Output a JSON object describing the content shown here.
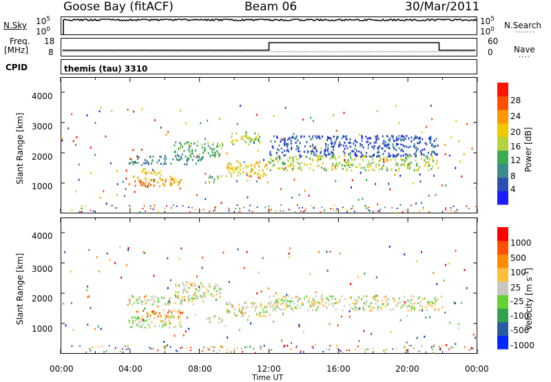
{
  "header": {
    "station": "Goose Bay (fitACF)",
    "beam": "Beam 06",
    "date": "30/Mar/2011"
  },
  "strip": {
    "nsky_label": "N.Sky",
    "nsearch_label": "N.Search",
    "freq_label": "Freq.",
    "freq_unit": "[MHz]",
    "nave_label": "Nave",
    "cpid_label": "CPID",
    "cpid_value": "themis (tau) 3310",
    "noise_ticks": [
      "10^5",
      "10^0"
    ],
    "freq_ticks": [
      "18",
      "8"
    ],
    "nave_ticks": [
      "60",
      "0"
    ]
  },
  "chart_data": [
    {
      "type": "heatmap",
      "title": "",
      "xlabel": "Time UT",
      "ylabel": "Slant Range [km]",
      "x_ticks": [
        "00:00",
        "04:00",
        "08:00",
        "12:00",
        "16:00",
        "20:00",
        "00:00"
      ],
      "y_ticks": [
        "1000",
        "2000",
        "3000",
        "4000"
      ],
      "ylim": [
        0,
        4500
      ],
      "colorbar": {
        "label": "Power [dB]",
        "ticks": [
          "4",
          "8",
          "12",
          "16",
          "20",
          "24",
          "28"
        ],
        "colors": [
          "#1a1aff",
          "#2850b4",
          "#3c8c8c",
          "#3caa50",
          "#b4d23c",
          "#f0c800",
          "#ff9600",
          "#ff5000",
          "#ff1400"
        ]
      },
      "regions": [
        {
          "t0": 3.9,
          "t1": 6.9,
          "r0": 900,
          "r1": 1250,
          "level": 6
        },
        {
          "t0": 4.3,
          "t1": 5.8,
          "r0": 1300,
          "r1": 1500,
          "level": 5
        },
        {
          "t0": 3.9,
          "t1": 8.2,
          "r0": 1650,
          "r1": 1950,
          "level": 2
        },
        {
          "t0": 6.5,
          "t1": 9.3,
          "r0": 1900,
          "r1": 2400,
          "level": 3
        },
        {
          "t0": 8.3,
          "t1": 9.3,
          "r0": 1050,
          "r1": 1300,
          "level": 3
        },
        {
          "t0": 9.5,
          "t1": 12.0,
          "r0": 1250,
          "r1": 1750,
          "level": 5
        },
        {
          "t0": 9.7,
          "t1": 11.5,
          "r0": 2300,
          "r1": 2700,
          "level": 4
        },
        {
          "t0": 12.0,
          "t1": 21.7,
          "r0": 1450,
          "r1": 1950,
          "level": 4
        },
        {
          "t0": 12.0,
          "t1": 21.7,
          "r0": 1900,
          "r1": 2600,
          "level": 1
        }
      ]
    },
    {
      "type": "heatmap",
      "title": "",
      "xlabel": "Time UT",
      "ylabel": "Slant Range [km]",
      "x_ticks": [
        "00:00",
        "04:00",
        "08:00",
        "12:00",
        "16:00",
        "20:00",
        "00:00"
      ],
      "y_ticks": [
        "1000",
        "2000",
        "3000",
        "4000"
      ],
      "ylim": [
        0,
        4500
      ],
      "colorbar": {
        "label": "Velocity [m s^-1]",
        "ticks": [
          "1000",
          "500",
          "100",
          "25",
          "-25",
          "-100",
          "-500",
          "-1000"
        ],
        "colors": [
          "#0028ff",
          "#285aa0",
          "#32a050",
          "#64d232",
          "#c8c8c0",
          "#ffbe3c",
          "#ff8c00",
          "#ff5000",
          "#ff0000"
        ]
      },
      "regions": [
        {
          "t0": 3.9,
          "t1": 6.9,
          "r0": 900,
          "r1": 1250,
          "level": 4
        },
        {
          "t0": 4.3,
          "t1": 7.0,
          "r0": 1250,
          "r1": 1500,
          "level": 6
        },
        {
          "t0": 3.9,
          "t1": 8.2,
          "r0": 1650,
          "r1": 1950,
          "level": 4
        },
        {
          "t0": 6.5,
          "t1": 9.3,
          "r0": 1900,
          "r1": 2400,
          "level": 4
        },
        {
          "t0": 8.3,
          "t1": 9.3,
          "r0": 1050,
          "r1": 1300,
          "level": 4
        },
        {
          "t0": 9.5,
          "t1": 12.0,
          "r0": 1250,
          "r1": 1750,
          "level": 4
        },
        {
          "t0": 12.0,
          "t1": 21.7,
          "r0": 1450,
          "r1": 1950,
          "level": 4
        },
        {
          "t0": 3.9,
          "t1": 4.8,
          "r0": 1100,
          "r1": 1250,
          "level": 3
        }
      ]
    }
  ]
}
